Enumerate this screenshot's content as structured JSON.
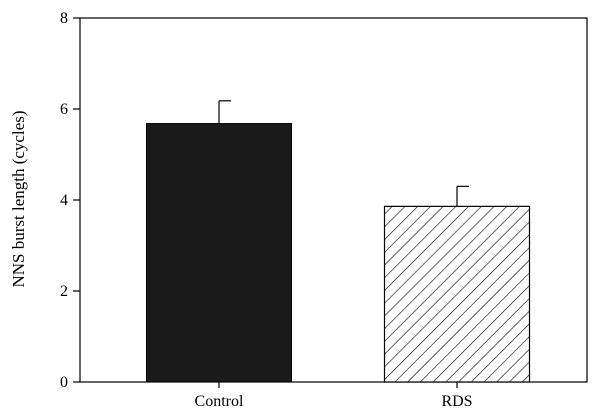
{
  "chart_data": {
    "type": "bar",
    "ylabel": "NNS burst length (cycles)",
    "xlabel": "",
    "ylim": [
      0,
      8
    ],
    "yticks": [
      0,
      2,
      4,
      6,
      8
    ],
    "categories": [
      "Control",
      "RDS"
    ],
    "values": [
      5.68,
      3.86
    ],
    "error_upper": [
      0.5,
      0.44
    ],
    "bar_fills": [
      "solid",
      "hatched"
    ],
    "bar_color": "#1a1a1a",
    "grid": false
  }
}
